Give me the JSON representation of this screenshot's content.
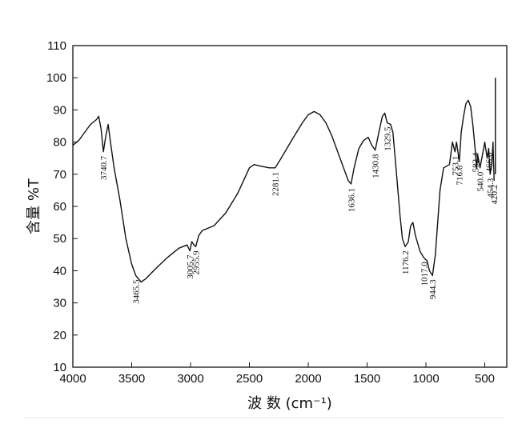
{
  "chart_data": {
    "type": "line",
    "xlabel": "波 数 (cm⁻¹)",
    "ylabel": "含量 %T",
    "xlim": [
      4000,
      300
    ],
    "ylim": [
      10,
      110
    ],
    "x_ticks": [
      4000,
      3500,
      3000,
      2500,
      2000,
      1500,
      1000,
      500
    ],
    "y_ticks": [
      10,
      20,
      30,
      40,
      50,
      60,
      70,
      80,
      90,
      100,
      110
    ],
    "grid": false,
    "legend": "none",
    "line_color": "#111111",
    "series": [
      {
        "points": [
          [
            4000,
            79
          ],
          [
            3950,
            80.5
          ],
          [
            3900,
            83
          ],
          [
            3850,
            85.5
          ],
          [
            3800,
            87
          ],
          [
            3780,
            88
          ],
          [
            3760,
            84
          ],
          [
            3740.7,
            77
          ],
          [
            3720,
            82
          ],
          [
            3700,
            85.5
          ],
          [
            3680,
            80
          ],
          [
            3650,
            72
          ],
          [
            3600,
            62
          ],
          [
            3550,
            50
          ],
          [
            3500,
            42
          ],
          [
            3465.5,
            38.5
          ],
          [
            3420,
            36.5
          ],
          [
            3380,
            37.5
          ],
          [
            3300,
            40.5
          ],
          [
            3200,
            44
          ],
          [
            3100,
            47
          ],
          [
            3030,
            48
          ],
          [
            3005.7,
            46.2
          ],
          [
            2990,
            49
          ],
          [
            2970,
            48
          ],
          [
            2955.9,
            47.5
          ],
          [
            2930,
            51
          ],
          [
            2900,
            52.5
          ],
          [
            2800,
            54
          ],
          [
            2700,
            58
          ],
          [
            2600,
            64
          ],
          [
            2550,
            68
          ],
          [
            2500,
            72
          ],
          [
            2460,
            73
          ],
          [
            2400,
            72.5
          ],
          [
            2330,
            72
          ],
          [
            2281.1,
            72
          ],
          [
            2230,
            75
          ],
          [
            2150,
            80
          ],
          [
            2100,
            83
          ],
          [
            2050,
            86
          ],
          [
            2000,
            88.5
          ],
          [
            1950,
            89.5
          ],
          [
            1900,
            88.5
          ],
          [
            1850,
            86
          ],
          [
            1800,
            82
          ],
          [
            1750,
            77
          ],
          [
            1700,
            72
          ],
          [
            1660,
            68
          ],
          [
            1636.1,
            67
          ],
          [
            1610,
            72
          ],
          [
            1570,
            78
          ],
          [
            1530,
            80.5
          ],
          [
            1490,
            81.5
          ],
          [
            1460,
            79
          ],
          [
            1430.8,
            77.5
          ],
          [
            1400,
            83
          ],
          [
            1370,
            88
          ],
          [
            1350,
            89
          ],
          [
            1329.5,
            86
          ],
          [
            1300,
            85.5
          ],
          [
            1280,
            83
          ],
          [
            1250,
            70
          ],
          [
            1220,
            57
          ],
          [
            1200,
            50
          ],
          [
            1176.2,
            47.5
          ],
          [
            1150,
            49
          ],
          [
            1130,
            54
          ],
          [
            1110,
            55
          ],
          [
            1090,
            51
          ],
          [
            1050,
            46
          ],
          [
            1017.0,
            44
          ],
          [
            990,
            43
          ],
          [
            970,
            40
          ],
          [
            944.3,
            38.5
          ],
          [
            920,
            45
          ],
          [
            900,
            55
          ],
          [
            880,
            65
          ],
          [
            850,
            72
          ],
          [
            800,
            73
          ],
          [
            775,
            80
          ],
          [
            753.1,
            77
          ],
          [
            740,
            80
          ],
          [
            716.6,
            74
          ],
          [
            700,
            83
          ],
          [
            680,
            88
          ],
          [
            660,
            92
          ],
          [
            640,
            93
          ],
          [
            620,
            91
          ],
          [
            600,
            85
          ],
          [
            582.4,
            78
          ],
          [
            570,
            72
          ],
          [
            560,
            76
          ],
          [
            540.0,
            72
          ],
          [
            520,
            76
          ],
          [
            500,
            80
          ],
          [
            480,
            75
          ],
          [
            466.6,
            78
          ],
          [
            454.3,
            70
          ],
          [
            440,
            73
          ],
          [
            430,
            80
          ],
          [
            420.2,
            68
          ]
        ]
      }
    ],
    "marker_line": {
      "x": 410,
      "from": 70,
      "to": 100
    },
    "annotations": [
      {
        "text": "3740.7",
        "x": 3740.7,
        "y": 77
      },
      {
        "text": "3465.5",
        "x": 3465.5,
        "y": 38.5
      },
      {
        "text": "3005.7",
        "x": 3005.7,
        "y": 46.2
      },
      {
        "text": "2955.9",
        "x": 2955.9,
        "y": 47.5
      },
      {
        "text": "2281.1",
        "x": 2281.1,
        "y": 72
      },
      {
        "text": "1636.1",
        "x": 1636.1,
        "y": 67
      },
      {
        "text": "1430.8",
        "x": 1430.8,
        "y": 77.5
      },
      {
        "text": "1329.5",
        "x": 1329.5,
        "y": 86
      },
      {
        "text": "1176.2",
        "x": 1176.2,
        "y": 47.5
      },
      {
        "text": "1017.0",
        "x": 1017.0,
        "y": 44
      },
      {
        "text": "944.3",
        "x": 944.3,
        "y": 38.5
      },
      {
        "text": "753.1",
        "x": 753.1,
        "y": 77
      },
      {
        "text": "716.6",
        "x": 716.6,
        "y": 74
      },
      {
        "text": "582.4",
        "x": 582.4,
        "y": 78
      },
      {
        "text": "540.0",
        "x": 540.0,
        "y": 72
      },
      {
        "text": "466.6",
        "x": 466.6,
        "y": 78
      },
      {
        "text": "454.3",
        "x": 454.3,
        "y": 70
      },
      {
        "text": "420.2",
        "x": 420.2,
        "y": 68
      }
    ]
  }
}
